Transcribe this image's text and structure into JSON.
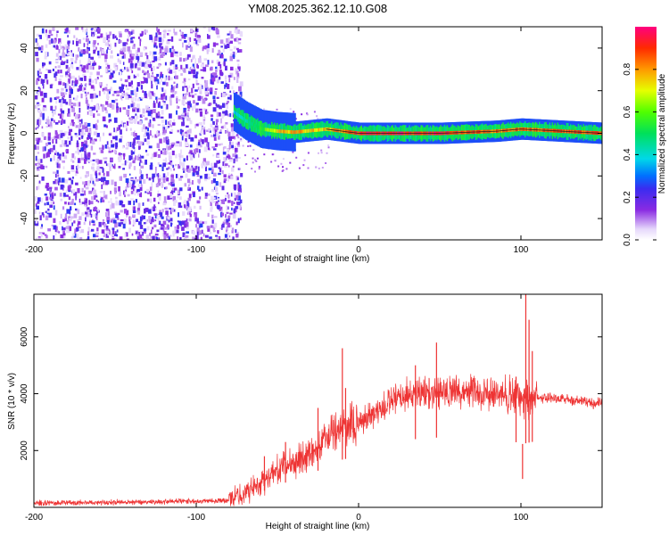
{
  "title": "YM08.2025.362.12.10.G08",
  "chart_data": [
    {
      "type": "heatmap",
      "name": "spectrogram",
      "xlabel": "Height of straight line (km)",
      "ylabel": "Frequency (Hz)",
      "xlim": [
        -200,
        150
      ],
      "ylim": [
        -50,
        50
      ],
      "x_ticks": [
        -200,
        -100,
        0,
        100
      ],
      "x_tick_labels": [
        "-200",
        "-100",
        "0",
        "100"
      ],
      "y_ticks": [
        -40,
        -20,
        0,
        20,
        40
      ],
      "y_tick_labels": [
        "-40",
        "-20",
        "0",
        "20",
        "40"
      ],
      "noise_region_x": [
        -200,
        -77
      ],
      "ridge": [
        {
          "x": -77,
          "f": 10,
          "amp": 0.4
        },
        {
          "x": -70,
          "f": 6,
          "amp": 0.45
        },
        {
          "x": -60,
          "f": 2,
          "amp": 0.6
        },
        {
          "x": -50,
          "f": 1,
          "amp": 0.8
        },
        {
          "x": -40,
          "f": 0.5,
          "amp": 0.85
        },
        {
          "x": -20,
          "f": 2,
          "amp": 0.8
        },
        {
          "x": 0,
          "f": 0,
          "amp": 1.0
        },
        {
          "x": 50,
          "f": 0,
          "amp": 1.0
        },
        {
          "x": 85,
          "f": 1,
          "amp": 0.9
        },
        {
          "x": 100,
          "f": 2,
          "amp": 0.9
        },
        {
          "x": 150,
          "f": 0,
          "amp": 0.95
        }
      ],
      "colorbar": {
        "label": "Normalized spectral amplitude",
        "range": [
          0,
          1
        ],
        "ticks": [
          0.0,
          0.2,
          0.4,
          0.6,
          0.8
        ],
        "tick_labels": [
          "0.0",
          "0.2",
          "0.4",
          "0.6",
          "0.8"
        ]
      }
    },
    {
      "type": "line",
      "name": "snr",
      "xlabel": "Height of straight line (km)",
      "ylabel": "SNR (10 * v/v)",
      "xlim": [
        -200,
        150
      ],
      "ylim": [
        0,
        7500
      ],
      "x_ticks": [
        -200,
        -100,
        0,
        100
      ],
      "x_tick_labels": [
        "-200",
        "-100",
        "0",
        "100"
      ],
      "y_ticks": [
        2000,
        4000,
        6000
      ],
      "y_tick_labels": [
        "2000",
        "4000",
        "6000"
      ],
      "color": "#ee3333",
      "envelope": {
        "x": [
          -200,
          -120,
          -80,
          -70,
          -60,
          -50,
          -40,
          -30,
          -20,
          -10,
          0,
          10,
          20,
          30,
          40,
          50,
          60,
          70,
          80,
          90,
          95,
          100,
          105,
          110,
          120,
          130,
          140,
          150
        ],
        "y": [
          150,
          200,
          250,
          500,
          900,
          1300,
          1600,
          1900,
          2400,
          2800,
          3000,
          3300,
          3700,
          3950,
          4050,
          4100,
          4100,
          4050,
          4000,
          3950,
          3900,
          3700,
          3800,
          3900,
          3850,
          3800,
          3700,
          3650
        ]
      },
      "spikes": [
        {
          "x": -58,
          "y": 1800
        },
        {
          "x": -45,
          "y": 2300
        },
        {
          "x": -25,
          "y": 3500
        },
        {
          "x": -10,
          "y": 5600
        },
        {
          "x": -8,
          "y": 4200
        },
        {
          "x": 35,
          "y": 5000
        },
        {
          "x": 48,
          "y": 5800
        },
        {
          "x": 97,
          "y": 4600
        },
        {
          "x": 101,
          "y": 1000
        },
        {
          "x": 103,
          "y": 7500
        },
        {
          "x": 105,
          "y": 6600
        },
        {
          "x": 107,
          "y": 5500
        }
      ]
    }
  ]
}
